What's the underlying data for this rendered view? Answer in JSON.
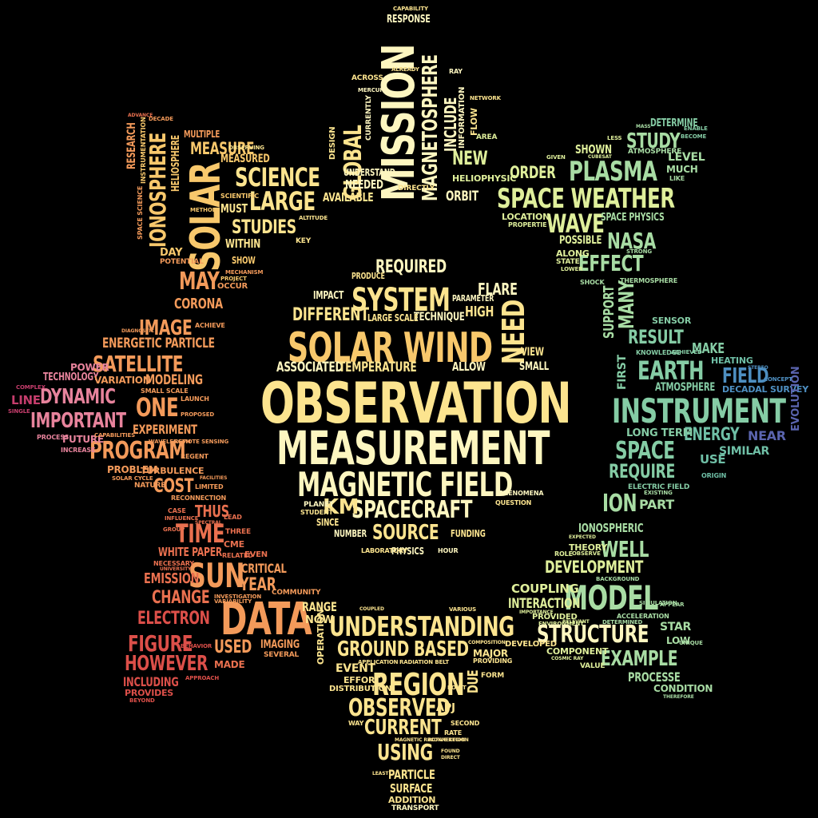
{
  "background": "#000000",
  "palette": {
    "cream": "#fdf6c0",
    "yellow": "#fce48f",
    "gold": "#f8c86c",
    "orange": "#f39a5a",
    "coral": "#e9704f",
    "red": "#dc4f49",
    "pink": "#e7839c",
    "magenta": "#c53d6c",
    "lime": "#dfef9b",
    "mint": "#a8dca4",
    "green": "#85cca5",
    "teal": "#6fbfa6",
    "blue": "#4e8fc1",
    "navy": "#5a64ae"
  },
  "words": [
    "OBSERVATION",
    "MEASUREMENT",
    "SOLAR WIND",
    "MAGNETIC FIELD",
    "SYSTEM",
    "SPACECRAFT",
    "SOURCE",
    "REQUIRED",
    "DIFFERENT",
    "ASSOCIATED",
    "TEMPERATURE",
    "NEED",
    "KM",
    "FLARE",
    "HIGH",
    "TECHNIQUE",
    "LARGE SCALE",
    "ALLOW",
    "VIEW",
    "SMALL",
    "IMPACT",
    "PRODUCE",
    "PARAMETER",
    "NUMBER",
    "FUNDING",
    "PHYSICS",
    "SINCE",
    "PLANET",
    "STUDENT",
    "LABORATORY",
    "HOUR",
    "QUESTION",
    "PHENOMENA",
    "MISSION",
    "MAGNETOSPHERE",
    "GLOBAL",
    "INCLUDE",
    "RESPONSE",
    "CAPABILITY",
    "NEW",
    "NEEDED",
    "AVAILABLE",
    "UNDERSTAND",
    "ORBIT",
    "DIRECTLY",
    "INFORMATION",
    "FLOW",
    "DESIGN",
    "CURRENTLY",
    "HELIOPHYSIC",
    "ACROSS",
    "MERCURY",
    "ALREADY",
    "AREA",
    "NETWORK",
    "RAY",
    "SOLAR",
    "IONOSPHERE",
    "SCIENCE",
    "LARGE",
    "MEASURE",
    "STUDIES",
    "MEASURED",
    "MUST",
    "WITHIN",
    "SHOW",
    "MAY",
    "CORONA",
    "DAY",
    "POTENTIAL",
    "RESEARCH",
    "HELIOSPHERE",
    "SPACE SCIENCE",
    "INSTRUMENTATION",
    "OBSERVING",
    "SCIENTIFIC",
    "MULTIPLE",
    "ALTITUDE",
    "KEY",
    "METHOD",
    "MECHANISM",
    "PROJECT",
    "OCCUR",
    "DECADE",
    "ADVANCE",
    "SATELLITE",
    "DYNAMIC",
    "IMPORTANT",
    "ONE",
    "IMAGE",
    "ENERGETIC PARTICLE",
    "MODELING",
    "PROGRAM",
    "EXPERIMENT",
    "COST",
    "TECHNOLOGY",
    "POWER",
    "LINE",
    "COMPLEX",
    "SINGLE",
    "PROCESS",
    "FUTURE",
    "INCREASE",
    "VARIATION",
    "CAPABILITIES",
    "PROBLEM",
    "TURBULENCE",
    "NATURE",
    "SOLAR CYCLE",
    "LAUNCH",
    "SMALL SCALE",
    "PROPOSED",
    "RECONNECTION",
    "LIMITED",
    "FACILITIES",
    "REGENT",
    "WAVELENGTH",
    "REMOTE SENSING",
    "DIAGNOSTIC",
    "ACHIEVE",
    "TIME",
    "THUS",
    "WHITE PAPER",
    "SUN",
    "CRITICAL",
    "EMISSION",
    "CHANGE",
    "ELECTRON",
    "DATA",
    "YEAR",
    "FIGURE",
    "HOWEVER",
    "INCLUDING",
    "PROVIDES",
    "USED",
    "IMAGING",
    "MADE",
    "SEVERAL",
    "BEYOND",
    "VARIABILITY",
    "APPROACH",
    "INVESTIGATION",
    "COMMUNITY",
    "EVEN",
    "RELATED",
    "THREE",
    "LEAD",
    "CME",
    "NECESSARY",
    "CASE",
    "INFLUENCE",
    "SPECTRAL",
    "GROUP",
    "UNIVERSITY",
    "BEHAVIOR",
    "UNDERSTANDING",
    "GROUND BASED",
    "REGION",
    "OBSERVED",
    "CURRENT",
    "USING",
    "PARTICLE",
    "SURFACE",
    "ADDITION",
    "TRANSPORT",
    "EVENT",
    "EFFORT",
    "DISTRIBUTION",
    "RANGE",
    "NOW",
    "OPERATION",
    "APPLICATION",
    "RADIATION BELT",
    "MAJOR",
    "DUE",
    "FORM",
    "APJ",
    "MAGNETIC RECONNECTION",
    "ACTIVE REGION",
    "RATE",
    "SECOND",
    "FOUND",
    "DIRECT",
    "WAY",
    "POINT",
    "VARIOUS",
    "PROVIDING",
    "COMPOSITION",
    "COUPLED",
    "LEAST",
    "PLASMA",
    "SPACE WEATHER",
    "WAVE",
    "NASA",
    "EFFECT",
    "STUDY",
    "SHOWN",
    "ORDER",
    "MANY",
    "SUPPORT",
    "RESULT",
    "SPACE PHYSICS",
    "POSSIBLE",
    "THERMOSPHERE",
    "ATMOSPHERE",
    "DETERMINE",
    "LEVEL",
    "MUCH",
    "LOCATION",
    "PROPERTIE",
    "ALONG",
    "STATE",
    "LOWER",
    "SENSOR",
    "STRONG",
    "MASS",
    "BECOME",
    "ENABLE",
    "LIKE",
    "GIVEN",
    "LESS",
    "CUBESAT",
    "SHOCK",
    "EARTH",
    "INSTRUMENT",
    "FIELD",
    "MAKE",
    "HEATING",
    "DECADAL SURVEY",
    "ENERGY",
    "ATMOSPHERE",
    "FIRST",
    "KNOWLEDGE",
    "ACHIEVED",
    "SPACE",
    "REQUIRE",
    "NEAR",
    "SIMILAR",
    "USE",
    "EVOLUTION",
    "LONG TERM",
    "ELECTRIC FIELD",
    "CONCEPT",
    "ORIGIN",
    "STEREO",
    "ION",
    "PART",
    "IONOSPHERIC",
    "WELL",
    "DEVELOPMENT",
    "THEORY",
    "ROLE",
    "MODEL",
    "INTERACTION",
    "COUPLING",
    "PROVIDED",
    "ENVIRONMENT",
    "STRUCTURE",
    "EXAMPLE",
    "PROCESSE",
    "CONDITION",
    "COMPONENT",
    "DEVELOPED",
    "IMPORTANCE",
    "VALUE",
    "DETERMINED",
    "ACCELERATION",
    "STAR",
    "LOW",
    "UNIQUE",
    "SIMULATION",
    "APPEAR",
    "OBSERVE",
    "COSMIC RAY",
    "THEREFORE",
    "BACKGROUND",
    "EXPECTED",
    "EXISTING",
    "RELEVANT"
  ]
}
